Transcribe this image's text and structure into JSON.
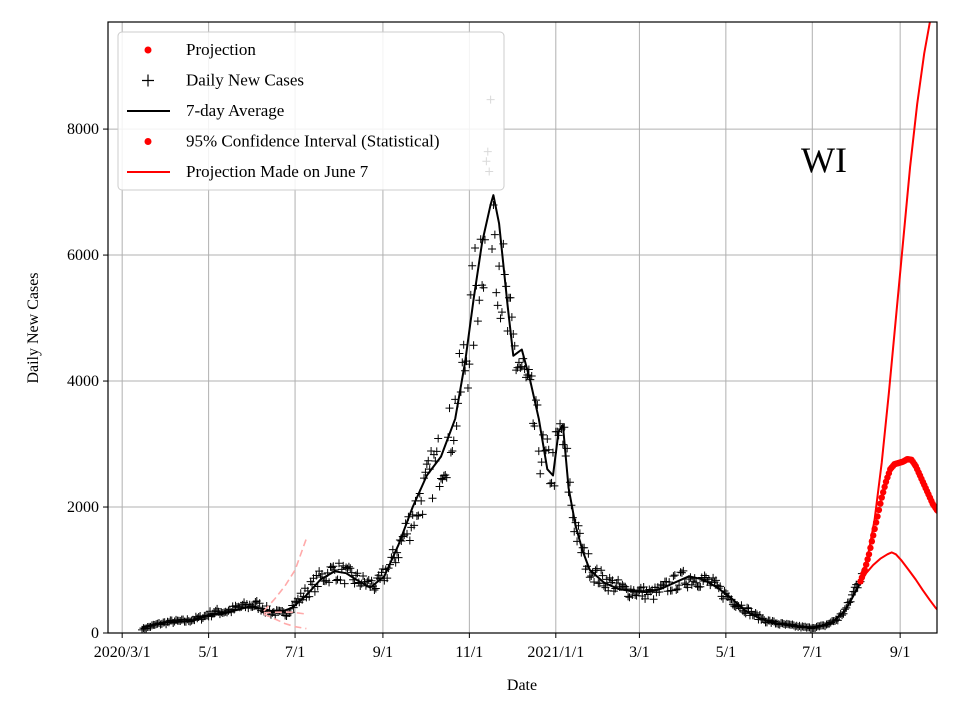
{
  "chart_data": {
    "type": "line",
    "annotation": "WI",
    "xlabel": "Date",
    "ylabel": "Daily New Cases",
    "x_unit": "days since 2020/3/1",
    "xlim": [
      -10,
      575
    ],
    "ylim": [
      0,
      9700
    ],
    "grid": true,
    "legend_position": "top-left",
    "x_ticks": [
      {
        "day": 0,
        "label": "2020/3/1"
      },
      {
        "day": 61,
        "label": "5/1"
      },
      {
        "day": 122,
        "label": "7/1"
      },
      {
        "day": 184,
        "label": "9/1"
      },
      {
        "day": 245,
        "label": "11/1"
      },
      {
        "day": 306,
        "label": "2021/1/1"
      },
      {
        "day": 365,
        "label": "3/1"
      },
      {
        "day": 426,
        "label": "5/1"
      },
      {
        "day": 487,
        "label": "7/1"
      },
      {
        "day": 549,
        "label": "9/1"
      }
    ],
    "y_ticks": [
      0,
      2000,
      4000,
      6000,
      8000
    ],
    "legend": [
      {
        "label": "Projection",
        "marker": "dot",
        "color": "#ff0000"
      },
      {
        "label": "Daily New Cases",
        "marker": "plus",
        "color": "#000000"
      },
      {
        "label": "7-day Average",
        "marker": "line",
        "color": "#000000"
      },
      {
        "label": "95% Confidence Interval (Statistical)",
        "marker": "dot",
        "color": "#ff0000"
      },
      {
        "label": "Projection Made on June 7",
        "marker": "line",
        "color": "#ff0000"
      }
    ],
    "series": [
      {
        "name": "7-day Average",
        "color": "#000000",
        "style": "line",
        "points": [
          [
            14,
            90
          ],
          [
            20,
            120
          ],
          [
            30,
            170
          ],
          [
            40,
            180
          ],
          [
            50,
            200
          ],
          [
            60,
            280
          ],
          [
            70,
            300
          ],
          [
            80,
            360
          ],
          [
            90,
            420
          ],
          [
            100,
            380
          ],
          [
            110,
            320
          ],
          [
            120,
            400
          ],
          [
            130,
            600
          ],
          [
            140,
            850
          ],
          [
            150,
            980
          ],
          [
            158,
            950
          ],
          [
            165,
            850
          ],
          [
            175,
            720
          ],
          [
            185,
            900
          ],
          [
            195,
            1400
          ],
          [
            205,
            2000
          ],
          [
            215,
            2500
          ],
          [
            225,
            2800
          ],
          [
            235,
            3400
          ],
          [
            242,
            4300
          ],
          [
            248,
            5300
          ],
          [
            254,
            6200
          ],
          [
            260,
            6800
          ],
          [
            262,
            6950
          ],
          [
            266,
            6500
          ],
          [
            272,
            5200
          ],
          [
            276,
            4400
          ],
          [
            282,
            4500
          ],
          [
            288,
            4000
          ],
          [
            294,
            3400
          ],
          [
            300,
            2600
          ],
          [
            304,
            2500
          ],
          [
            308,
            3200
          ],
          [
            311,
            3300
          ],
          [
            315,
            2300
          ],
          [
            320,
            1700
          ],
          [
            325,
            1300
          ],
          [
            330,
            1000
          ],
          [
            340,
            800
          ],
          [
            350,
            700
          ],
          [
            360,
            660
          ],
          [
            370,
            650
          ],
          [
            380,
            700
          ],
          [
            390,
            800
          ],
          [
            400,
            900
          ],
          [
            410,
            850
          ],
          [
            420,
            720
          ],
          [
            430,
            550
          ],
          [
            440,
            350
          ],
          [
            450,
            230
          ],
          [
            460,
            160
          ],
          [
            470,
            120
          ],
          [
            480,
            90
          ],
          [
            490,
            95
          ],
          [
            500,
            150
          ],
          [
            510,
            350
          ],
          [
            515,
            550
          ],
          [
            522,
            850
          ]
        ]
      },
      {
        "name": "Projection Made on June 7",
        "color": "#ff0000",
        "style": "line",
        "points": [
          [
            521,
            800
          ],
          [
            525,
            950
          ],
          [
            530,
            1080
          ],
          [
            535,
            1180
          ],
          [
            540,
            1250
          ],
          [
            543,
            1280
          ],
          [
            546,
            1250
          ],
          [
            550,
            1150
          ],
          [
            555,
            1000
          ],
          [
            560,
            850
          ],
          [
            565,
            680
          ],
          [
            570,
            520
          ],
          [
            574,
            400
          ],
          [
            577,
            330
          ]
        ]
      },
      {
        "name": "Projection",
        "color": "#ff0000",
        "style": "dots",
        "points": [
          [
            521,
            820
          ],
          [
            524,
            1000
          ],
          [
            527,
            1250
          ],
          [
            530,
            1550
          ],
          [
            533,
            1850
          ],
          [
            536,
            2150
          ],
          [
            539,
            2400
          ],
          [
            542,
            2600
          ],
          [
            545,
            2680
          ],
          [
            548,
            2700
          ],
          [
            551,
            2720
          ],
          [
            554,
            2760
          ],
          [
            557,
            2750
          ],
          [
            560,
            2650
          ],
          [
            563,
            2500
          ],
          [
            566,
            2350
          ],
          [
            569,
            2200
          ],
          [
            572,
            2050
          ],
          [
            575,
            1950
          ],
          [
            577,
            1920
          ]
        ]
      },
      {
        "name": "95% Confidence Interval (Statistical)",
        "color": "#ff0000",
        "style": "line",
        "points": [
          [
            521,
            850
          ],
          [
            526,
            1200
          ],
          [
            531,
            1800
          ],
          [
            536,
            2700
          ],
          [
            541,
            3800
          ],
          [
            546,
            5000
          ],
          [
            551,
            6200
          ],
          [
            556,
            7400
          ],
          [
            561,
            8400
          ],
          [
            566,
            9200
          ],
          [
            570,
            9700
          ]
        ]
      },
      {
        "name": "Earlier projection band upper",
        "color": "#ffaaaa",
        "style": "dashed",
        "points": [
          [
            100,
            350
          ],
          [
            108,
            550
          ],
          [
            115,
            750
          ],
          [
            122,
            1000
          ],
          [
            130,
            1500
          ]
        ]
      },
      {
        "name": "Earlier projection band lower",
        "color": "#ffaaaa",
        "style": "dashed",
        "points": [
          [
            100,
            300
          ],
          [
            108,
            220
          ],
          [
            115,
            150
          ],
          [
            122,
            100
          ],
          [
            130,
            70
          ]
        ]
      },
      {
        "name": "Earlier projection band mid",
        "color": "#ffaaaa",
        "style": "dashed",
        "points": [
          [
            100,
            320
          ],
          [
            110,
            330
          ],
          [
            120,
            330
          ],
          [
            130,
            300
          ]
        ]
      }
    ],
    "daily_new_cases_anchors": [
      [
        14,
        60
      ],
      [
        25,
        140
      ],
      [
        35,
        180
      ],
      [
        45,
        190
      ],
      [
        55,
        240
      ],
      [
        65,
        330
      ],
      [
        75,
        350
      ],
      [
        85,
        420
      ],
      [
        95,
        450
      ],
      [
        105,
        330
      ],
      [
        115,
        300
      ],
      [
        120,
        420
      ],
      [
        130,
        650
      ],
      [
        140,
        870
      ],
      [
        150,
        1000
      ],
      [
        160,
        900
      ],
      [
        170,
        800
      ],
      [
        180,
        750
      ],
      [
        190,
        1100
      ],
      [
        200,
        1600
      ],
      [
        210,
        2100
      ],
      [
        220,
        2600
      ],
      [
        230,
        3000
      ],
      [
        238,
        3800
      ],
      [
        245,
        4700
      ],
      [
        250,
        5500
      ],
      [
        255,
        6400
      ],
      [
        258,
        7500
      ],
      [
        262,
        7000
      ],
      [
        266,
        6000
      ],
      [
        270,
        5200
      ],
      [
        274,
        4600
      ],
      [
        280,
        4300
      ],
      [
        286,
        3800
      ],
      [
        292,
        3200
      ],
      [
        298,
        2700
      ],
      [
        304,
        2600
      ],
      [
        310,
        3200
      ],
      [
        314,
        2600
      ],
      [
        318,
        1900
      ],
      [
        322,
        1500
      ],
      [
        326,
        1200
      ],
      [
        335,
        900
      ],
      [
        345,
        780
      ],
      [
        355,
        680
      ],
      [
        365,
        650
      ],
      [
        375,
        620
      ],
      [
        385,
        740
      ],
      [
        395,
        850
      ],
      [
        405,
        880
      ],
      [
        415,
        790
      ],
      [
        425,
        620
      ],
      [
        435,
        450
      ],
      [
        445,
        300
      ],
      [
        455,
        190
      ],
      [
        465,
        140
      ],
      [
        475,
        110
      ],
      [
        485,
        80
      ],
      [
        495,
        110
      ],
      [
        505,
        220
      ],
      [
        512,
        420
      ],
      [
        518,
        750
      ],
      [
        522,
        1000
      ]
    ]
  }
}
